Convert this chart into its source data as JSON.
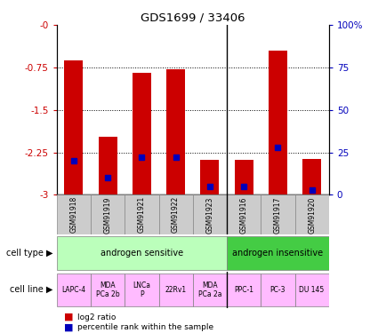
{
  "title": "GDS1699 / 33406",
  "samples": [
    "GSM91918",
    "GSM91919",
    "GSM91921",
    "GSM91922",
    "GSM91923",
    "GSM91916",
    "GSM91917",
    "GSM91920"
  ],
  "log2_ratio": [
    -0.62,
    -1.97,
    -0.85,
    -0.78,
    -2.38,
    -2.38,
    -0.45,
    -2.36
  ],
  "percentile_rank": [
    20,
    10,
    22,
    22,
    5,
    5,
    28,
    3
  ],
  "ylim_left": [
    -3,
    0
  ],
  "yticks_left": [
    0,
    -0.75,
    -1.5,
    -2.25,
    -3
  ],
  "ytick_labels_left": [
    "-0",
    "-0.75",
    "-1.5",
    "-2.25",
    "-3"
  ],
  "ylim_right": [
    0,
    100
  ],
  "yticks_right": [
    0,
    25,
    50,
    75,
    100
  ],
  "ytick_labels_right": [
    "0",
    "25",
    "50",
    "75",
    "100%"
  ],
  "bar_color": "#cc0000",
  "blue_color": "#0000bb",
  "cell_type_sensitive": "androgen sensitive",
  "cell_type_insensitive": "androgen insensitive",
  "cell_lines": [
    "LAPC-4",
    "MDA\nPCa 2b",
    "LNCa\nP",
    "22Rv1",
    "MDA\nPCa 2a",
    "PPC-1",
    "PC-3",
    "DU 145"
  ],
  "n_sensitive": 5,
  "n_insensitive": 3,
  "sensitive_color": "#bbffbb",
  "insensitive_color": "#44cc44",
  "cell_line_color": "#ffbbff",
  "label_color_left": "#cc0000",
  "label_color_right": "#0000bb",
  "background_color": "#ffffff",
  "ax_bg_color": "#ffffff",
  "grid_color": "#333333",
  "sample_box_color": "#cccccc",
  "sample_box_edge": "#888888"
}
